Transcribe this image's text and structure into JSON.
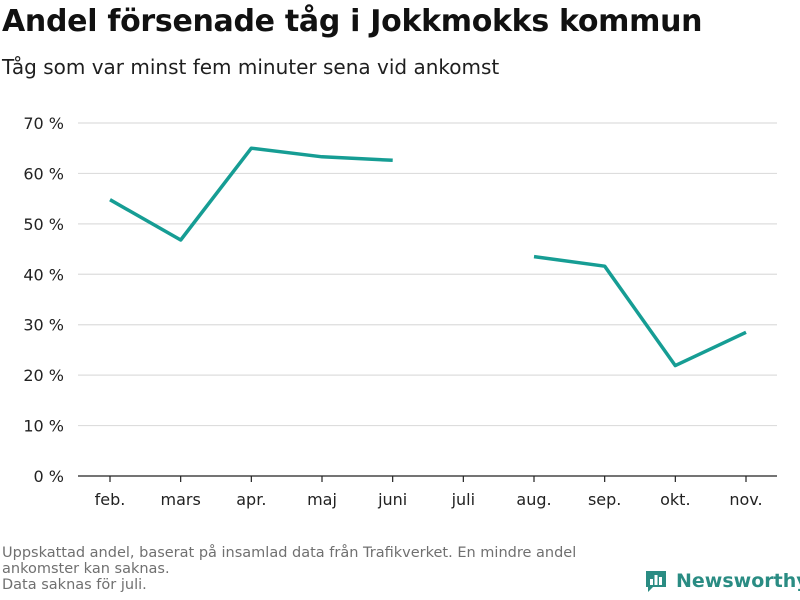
{
  "header": {
    "title": "Andel försenade tåg i Jokkmokks kommun",
    "subtitle": "Tåg som var minst fem minuter sena vid ankomst"
  },
  "footnote": {
    "line1": "Uppskattad andel, baserat på insamlad data från Trafikverket. En mindre andel",
    "line2": "ankomster kan saknas.",
    "line3": "Data saknas för juli."
  },
  "brand": {
    "name": "Newsworthy",
    "icon": "bar-chart-logo-icon",
    "color": "#2a8c83"
  },
  "chart_data": {
    "type": "line",
    "categories": [
      "feb.",
      "mars",
      "apr.",
      "maj",
      "juni",
      "juli",
      "aug.",
      "sep.",
      "okt.",
      "nov."
    ],
    "series": [
      {
        "values": [
          54.8,
          46.8,
          65.0,
          63.3,
          62.6,
          null,
          43.5,
          41.6,
          21.9,
          28.5
        ],
        "color": "#169d94"
      }
    ],
    "ylim": [
      0,
      70
    ],
    "yticks": [
      0,
      10,
      20,
      30,
      40,
      50,
      60,
      70
    ],
    "ytick_labels": [
      "0 %",
      "10 %",
      "20 %",
      "30 %",
      "40 %",
      "50 %",
      "60 %",
      "70 %"
    ],
    "grid": true,
    "gridline_color": "#dddddd",
    "title": "Andel försenade tåg i Jokkmokks kommun",
    "subtitle": "Tåg som var minst fem minuter sena vid ankomst"
  }
}
